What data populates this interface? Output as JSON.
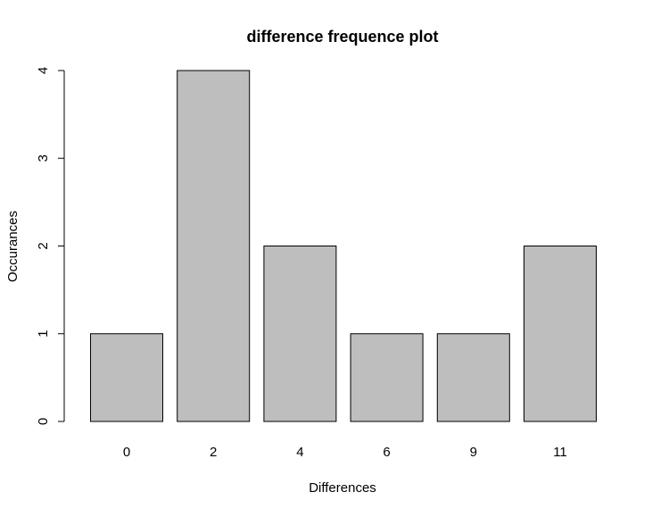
{
  "chart_data": {
    "type": "bar",
    "title": "difference frequence plot",
    "xlabel": "Differences",
    "ylabel": "Occurances",
    "categories": [
      "0",
      "2",
      "4",
      "6",
      "9",
      "11"
    ],
    "values": [
      1,
      4,
      2,
      1,
      1,
      2
    ],
    "yticks": [
      "0",
      "1",
      "2",
      "3",
      "4"
    ],
    "ylim": [
      0,
      4
    ],
    "grid": false,
    "legend": "none",
    "bar_color": "#bebebe",
    "bar_edge_color": "#000000"
  }
}
